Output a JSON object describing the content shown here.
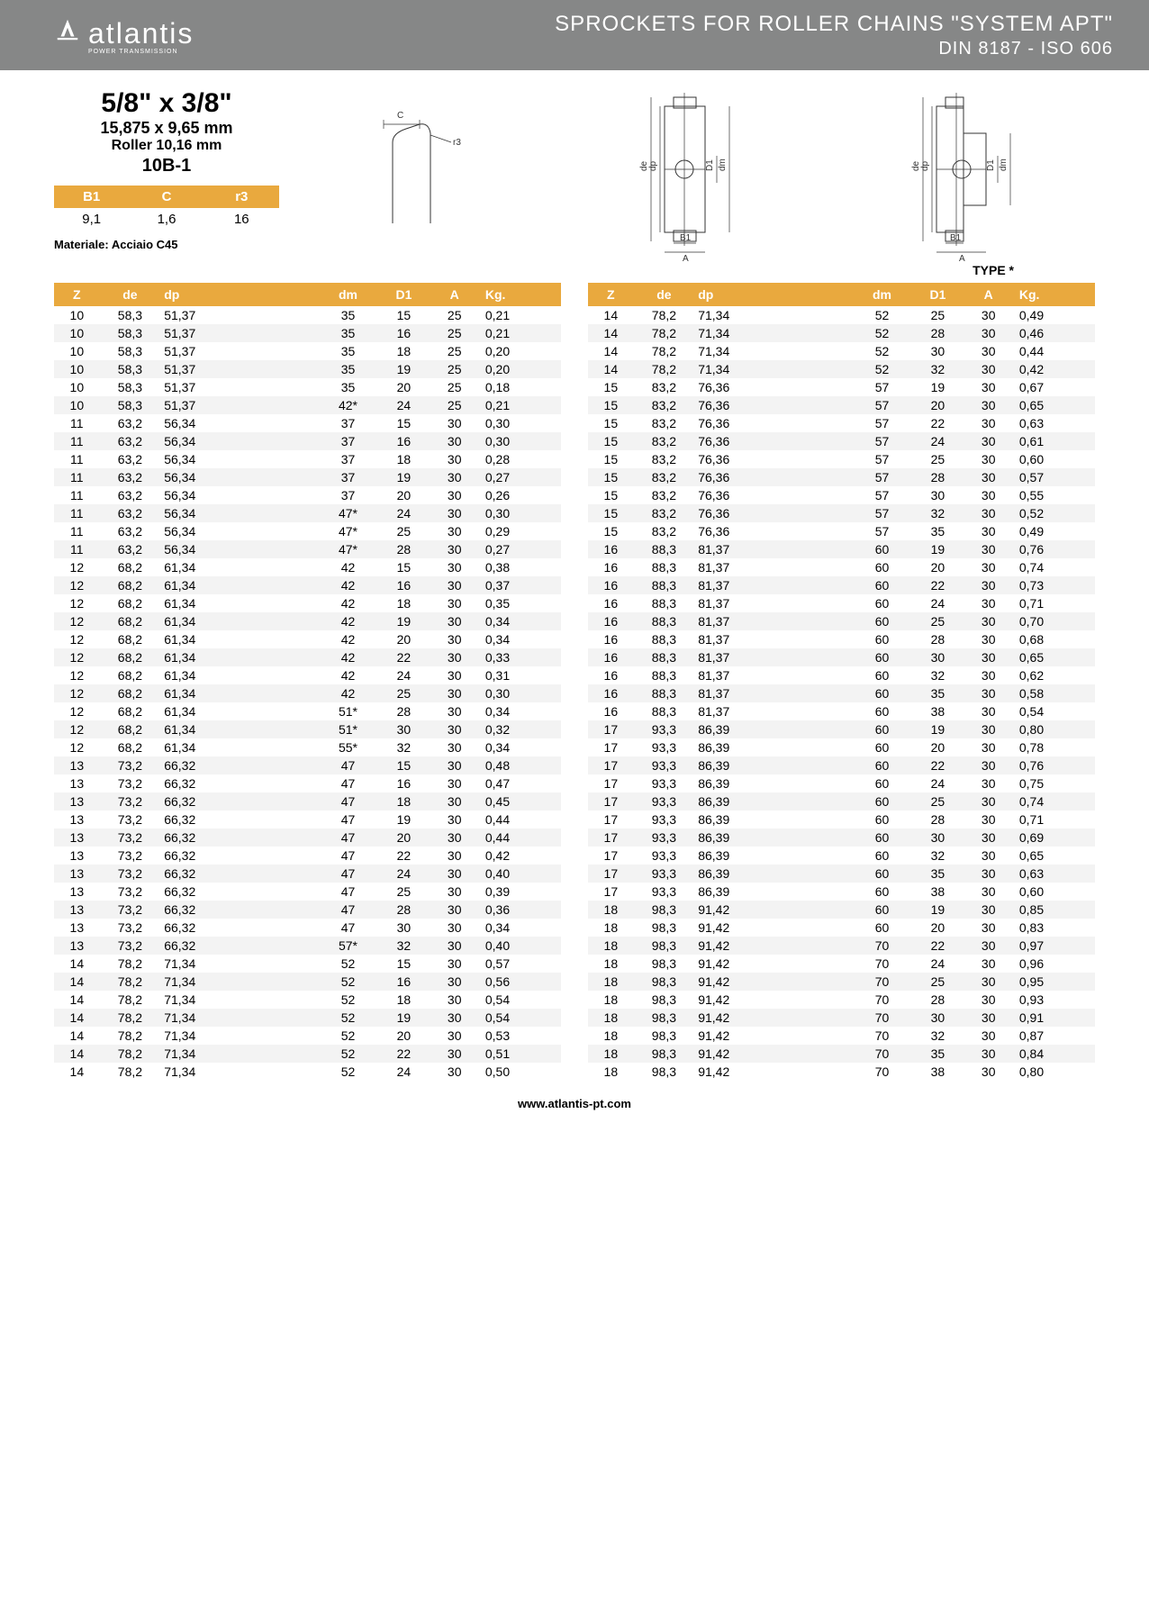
{
  "header": {
    "logo_text": "atlantis",
    "logo_sub": "POWER TRANSMISSION",
    "title": "SPROCKETS FOR ROLLER CHAINS \"SYSTEM APT\"",
    "subtitle": "DIN 8187 - ISO 606"
  },
  "spec": {
    "size": "5/8\" x 3/8\"",
    "mm": "15,875 x 9,65 mm",
    "roller": "Roller 10,16 mm",
    "code": "10B-1"
  },
  "bcr": {
    "headers": [
      "B1",
      "C",
      "r3"
    ],
    "values": [
      "9,1",
      "1,6",
      "16"
    ]
  },
  "material": "Materiale: Acciaio C45",
  "type_label": "TYPE *",
  "columns": [
    "Z",
    "de",
    "dp",
    "dm",
    "D1",
    "A",
    "Kg."
  ],
  "footer": "www.atlantis-pt.com",
  "left_rows": [
    [
      "10",
      "58,3",
      "51,37",
      "35",
      "15",
      "25",
      "0,21"
    ],
    [
      "10",
      "58,3",
      "51,37",
      "35",
      "16",
      "25",
      "0,21"
    ],
    [
      "10",
      "58,3",
      "51,37",
      "35",
      "18",
      "25",
      "0,20"
    ],
    [
      "10",
      "58,3",
      "51,37",
      "35",
      "19",
      "25",
      "0,20"
    ],
    [
      "10",
      "58,3",
      "51,37",
      "35",
      "20",
      "25",
      "0,18"
    ],
    [
      "10",
      "58,3",
      "51,37",
      "42*",
      "24",
      "25",
      "0,21"
    ],
    [
      "11",
      "63,2",
      "56,34",
      "37",
      "15",
      "30",
      "0,30"
    ],
    [
      "11",
      "63,2",
      "56,34",
      "37",
      "16",
      "30",
      "0,30"
    ],
    [
      "11",
      "63,2",
      "56,34",
      "37",
      "18",
      "30",
      "0,28"
    ],
    [
      "11",
      "63,2",
      "56,34",
      "37",
      "19",
      "30",
      "0,27"
    ],
    [
      "11",
      "63,2",
      "56,34",
      "37",
      "20",
      "30",
      "0,26"
    ],
    [
      "11",
      "63,2",
      "56,34",
      "47*",
      "24",
      "30",
      "0,30"
    ],
    [
      "11",
      "63,2",
      "56,34",
      "47*",
      "25",
      "30",
      "0,29"
    ],
    [
      "11",
      "63,2",
      "56,34",
      "47*",
      "28",
      "30",
      "0,27"
    ],
    [
      "12",
      "68,2",
      "61,34",
      "42",
      "15",
      "30",
      "0,38"
    ],
    [
      "12",
      "68,2",
      "61,34",
      "42",
      "16",
      "30",
      "0,37"
    ],
    [
      "12",
      "68,2",
      "61,34",
      "42",
      "18",
      "30",
      "0,35"
    ],
    [
      "12",
      "68,2",
      "61,34",
      "42",
      "19",
      "30",
      "0,34"
    ],
    [
      "12",
      "68,2",
      "61,34",
      "42",
      "20",
      "30",
      "0,34"
    ],
    [
      "12",
      "68,2",
      "61,34",
      "42",
      "22",
      "30",
      "0,33"
    ],
    [
      "12",
      "68,2",
      "61,34",
      "42",
      "24",
      "30",
      "0,31"
    ],
    [
      "12",
      "68,2",
      "61,34",
      "42",
      "25",
      "30",
      "0,30"
    ],
    [
      "12",
      "68,2",
      "61,34",
      "51*",
      "28",
      "30",
      "0,34"
    ],
    [
      "12",
      "68,2",
      "61,34",
      "51*",
      "30",
      "30",
      "0,32"
    ],
    [
      "12",
      "68,2",
      "61,34",
      "55*",
      "32",
      "30",
      "0,34"
    ],
    [
      "13",
      "73,2",
      "66,32",
      "47",
      "15",
      "30",
      "0,48"
    ],
    [
      "13",
      "73,2",
      "66,32",
      "47",
      "16",
      "30",
      "0,47"
    ],
    [
      "13",
      "73,2",
      "66,32",
      "47",
      "18",
      "30",
      "0,45"
    ],
    [
      "13",
      "73,2",
      "66,32",
      "47",
      "19",
      "30",
      "0,44"
    ],
    [
      "13",
      "73,2",
      "66,32",
      "47",
      "20",
      "30",
      "0,44"
    ],
    [
      "13",
      "73,2",
      "66,32",
      "47",
      "22",
      "30",
      "0,42"
    ],
    [
      "13",
      "73,2",
      "66,32",
      "47",
      "24",
      "30",
      "0,40"
    ],
    [
      "13",
      "73,2",
      "66,32",
      "47",
      "25",
      "30",
      "0,39"
    ],
    [
      "13",
      "73,2",
      "66,32",
      "47",
      "28",
      "30",
      "0,36"
    ],
    [
      "13",
      "73,2",
      "66,32",
      "47",
      "30",
      "30",
      "0,34"
    ],
    [
      "13",
      "73,2",
      "66,32",
      "57*",
      "32",
      "30",
      "0,40"
    ],
    [
      "14",
      "78,2",
      "71,34",
      "52",
      "15",
      "30",
      "0,57"
    ],
    [
      "14",
      "78,2",
      "71,34",
      "52",
      "16",
      "30",
      "0,56"
    ],
    [
      "14",
      "78,2",
      "71,34",
      "52",
      "18",
      "30",
      "0,54"
    ],
    [
      "14",
      "78,2",
      "71,34",
      "52",
      "19",
      "30",
      "0,54"
    ],
    [
      "14",
      "78,2",
      "71,34",
      "52",
      "20",
      "30",
      "0,53"
    ],
    [
      "14",
      "78,2",
      "71,34",
      "52",
      "22",
      "30",
      "0,51"
    ],
    [
      "14",
      "78,2",
      "71,34",
      "52",
      "24",
      "30",
      "0,50"
    ]
  ],
  "right_rows": [
    [
      "14",
      "78,2",
      "71,34",
      "52",
      "25",
      "30",
      "0,49"
    ],
    [
      "14",
      "78,2",
      "71,34",
      "52",
      "28",
      "30",
      "0,46"
    ],
    [
      "14",
      "78,2",
      "71,34",
      "52",
      "30",
      "30",
      "0,44"
    ],
    [
      "14",
      "78,2",
      "71,34",
      "52",
      "32",
      "30",
      "0,42"
    ],
    [
      "15",
      "83,2",
      "76,36",
      "57",
      "19",
      "30",
      "0,67"
    ],
    [
      "15",
      "83,2",
      "76,36",
      "57",
      "20",
      "30",
      "0,65"
    ],
    [
      "15",
      "83,2",
      "76,36",
      "57",
      "22",
      "30",
      "0,63"
    ],
    [
      "15",
      "83,2",
      "76,36",
      "57",
      "24",
      "30",
      "0,61"
    ],
    [
      "15",
      "83,2",
      "76,36",
      "57",
      "25",
      "30",
      "0,60"
    ],
    [
      "15",
      "83,2",
      "76,36",
      "57",
      "28",
      "30",
      "0,57"
    ],
    [
      "15",
      "83,2",
      "76,36",
      "57",
      "30",
      "30",
      "0,55"
    ],
    [
      "15",
      "83,2",
      "76,36",
      "57",
      "32",
      "30",
      "0,52"
    ],
    [
      "15",
      "83,2",
      "76,36",
      "57",
      "35",
      "30",
      "0,49"
    ],
    [
      "16",
      "88,3",
      "81,37",
      "60",
      "19",
      "30",
      "0,76"
    ],
    [
      "16",
      "88,3",
      "81,37",
      "60",
      "20",
      "30",
      "0,74"
    ],
    [
      "16",
      "88,3",
      "81,37",
      "60",
      "22",
      "30",
      "0,73"
    ],
    [
      "16",
      "88,3",
      "81,37",
      "60",
      "24",
      "30",
      "0,71"
    ],
    [
      "16",
      "88,3",
      "81,37",
      "60",
      "25",
      "30",
      "0,70"
    ],
    [
      "16",
      "88,3",
      "81,37",
      "60",
      "28",
      "30",
      "0,68"
    ],
    [
      "16",
      "88,3",
      "81,37",
      "60",
      "30",
      "30",
      "0,65"
    ],
    [
      "16",
      "88,3",
      "81,37",
      "60",
      "32",
      "30",
      "0,62"
    ],
    [
      "16",
      "88,3",
      "81,37",
      "60",
      "35",
      "30",
      "0,58"
    ],
    [
      "16",
      "88,3",
      "81,37",
      "60",
      "38",
      "30",
      "0,54"
    ],
    [
      "17",
      "93,3",
      "86,39",
      "60",
      "19",
      "30",
      "0,80"
    ],
    [
      "17",
      "93,3",
      "86,39",
      "60",
      "20",
      "30",
      "0,78"
    ],
    [
      "17",
      "93,3",
      "86,39",
      "60",
      "22",
      "30",
      "0,76"
    ],
    [
      "17",
      "93,3",
      "86,39",
      "60",
      "24",
      "30",
      "0,75"
    ],
    [
      "17",
      "93,3",
      "86,39",
      "60",
      "25",
      "30",
      "0,74"
    ],
    [
      "17",
      "93,3",
      "86,39",
      "60",
      "28",
      "30",
      "0,71"
    ],
    [
      "17",
      "93,3",
      "86,39",
      "60",
      "30",
      "30",
      "0,69"
    ],
    [
      "17",
      "93,3",
      "86,39",
      "60",
      "32",
      "30",
      "0,65"
    ],
    [
      "17",
      "93,3",
      "86,39",
      "60",
      "35",
      "30",
      "0,63"
    ],
    [
      "17",
      "93,3",
      "86,39",
      "60",
      "38",
      "30",
      "0,60"
    ],
    [
      "18",
      "98,3",
      "91,42",
      "60",
      "19",
      "30",
      "0,85"
    ],
    [
      "18",
      "98,3",
      "91,42",
      "60",
      "20",
      "30",
      "0,83"
    ],
    [
      "18",
      "98,3",
      "91,42",
      "70",
      "22",
      "30",
      "0,97"
    ],
    [
      "18",
      "98,3",
      "91,42",
      "70",
      "24",
      "30",
      "0,96"
    ],
    [
      "18",
      "98,3",
      "91,42",
      "70",
      "25",
      "30",
      "0,95"
    ],
    [
      "18",
      "98,3",
      "91,42",
      "70",
      "28",
      "30",
      "0,93"
    ],
    [
      "18",
      "98,3",
      "91,42",
      "70",
      "30",
      "30",
      "0,91"
    ],
    [
      "18",
      "98,3",
      "91,42",
      "70",
      "32",
      "30",
      "0,87"
    ],
    [
      "18",
      "98,3",
      "91,42",
      "70",
      "35",
      "30",
      "0,84"
    ],
    [
      "18",
      "98,3",
      "91,42",
      "70",
      "38",
      "30",
      "0,80"
    ]
  ],
  "colors": {
    "header_bg": "#868787",
    "accent": "#e9a93e",
    "shade": "#f3f3f3"
  },
  "diagram_labels": {
    "c": "C",
    "r3": "r3",
    "de": "de",
    "dp": "dp",
    "d1": "D1",
    "dm": "dm",
    "b1": "B1",
    "a": "A"
  }
}
